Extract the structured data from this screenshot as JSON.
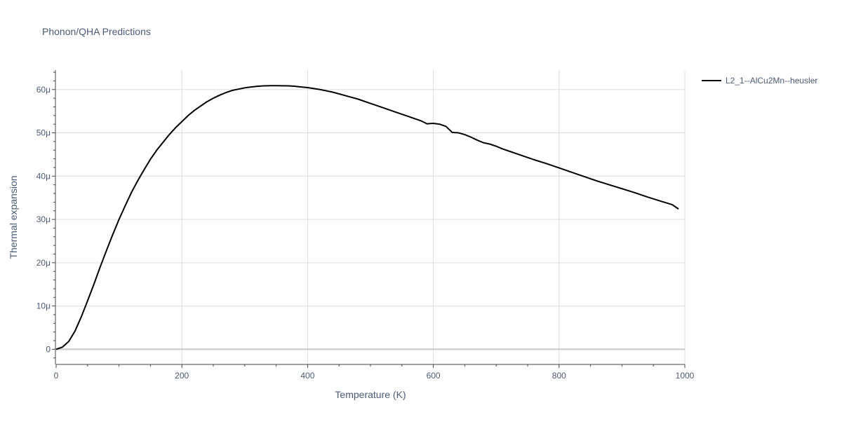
{
  "chart_data": {
    "type": "line",
    "title": "Phonon/QHA Predictions",
    "xlabel": "Temperature (K)",
    "ylabel": "Thermal expansion",
    "xlim": [
      0,
      1000
    ],
    "ylim": [
      -3.5e-06,
      6.45e-05
    ],
    "x_ticks": [
      0,
      200,
      400,
      600,
      800,
      1000
    ],
    "x_tick_labels": [
      "0",
      "200",
      "400",
      "600",
      "800",
      "1000"
    ],
    "y_ticks": [
      0,
      1e-05,
      2e-05,
      3e-05,
      4e-05,
      5e-05,
      6e-05
    ],
    "y_tick_labels": [
      "0",
      "10μ",
      "20μ",
      "30μ",
      "40μ",
      "50μ",
      "60μ"
    ],
    "grid": true,
    "legend_position": "top-right",
    "line_color": "#000000",
    "series": [
      {
        "name": "L2_1--AlCu2Mn--heusler",
        "x": [
          0,
          10,
          20,
          30,
          40,
          50,
          60,
          70,
          80,
          90,
          100,
          110,
          120,
          130,
          140,
          150,
          160,
          170,
          180,
          190,
          200,
          210,
          220,
          230,
          240,
          250,
          260,
          270,
          280,
          290,
          300,
          310,
          320,
          330,
          340,
          350,
          360,
          370,
          380,
          390,
          400,
          420,
          440,
          460,
          480,
          500,
          520,
          540,
          560,
          580,
          590,
          600,
          610,
          620,
          630,
          640,
          650,
          660,
          670,
          680,
          690,
          700,
          710,
          720,
          740,
          760,
          780,
          800,
          820,
          840,
          860,
          880,
          900,
          920,
          940,
          960,
          980,
          990
        ],
        "y": [
          0,
          5e-07,
          1.8e-06,
          4.2e-06,
          7.5e-06,
          1.12e-05,
          1.5e-05,
          1.9e-05,
          2.28e-05,
          2.65e-05,
          3e-05,
          3.32e-05,
          3.63e-05,
          3.9e-05,
          4.15e-05,
          4.39e-05,
          4.6e-05,
          4.78e-05,
          4.96e-05,
          5.12e-05,
          5.26e-05,
          5.4e-05,
          5.52e-05,
          5.62e-05,
          5.72e-05,
          5.8e-05,
          5.87e-05,
          5.93e-05,
          5.98e-05,
          6.01e-05,
          6.04e-05,
          6.06e-05,
          6.075e-05,
          6.085e-05,
          6.09e-05,
          6.09e-05,
          6.088e-05,
          6.085e-05,
          6.075e-05,
          6.06e-05,
          6.045e-05,
          6e-05,
          5.94e-05,
          5.86e-05,
          5.78e-05,
          5.68e-05,
          5.58e-05,
          5.48e-05,
          5.38e-05,
          5.28e-05,
          5.21e-05,
          5.22e-05,
          5.2e-05,
          5.15e-05,
          5.01e-05,
          5e-05,
          4.96e-05,
          4.9e-05,
          4.83e-05,
          4.77e-05,
          4.74e-05,
          4.69e-05,
          4.63e-05,
          4.58e-05,
          4.48e-05,
          4.38e-05,
          4.29e-05,
          4.19e-05,
          4.09e-05,
          3.99e-05,
          3.89e-05,
          3.8e-05,
          3.71e-05,
          3.62e-05,
          3.52e-05,
          3.43e-05,
          3.34e-05,
          3.24e-05
        ]
      }
    ]
  }
}
